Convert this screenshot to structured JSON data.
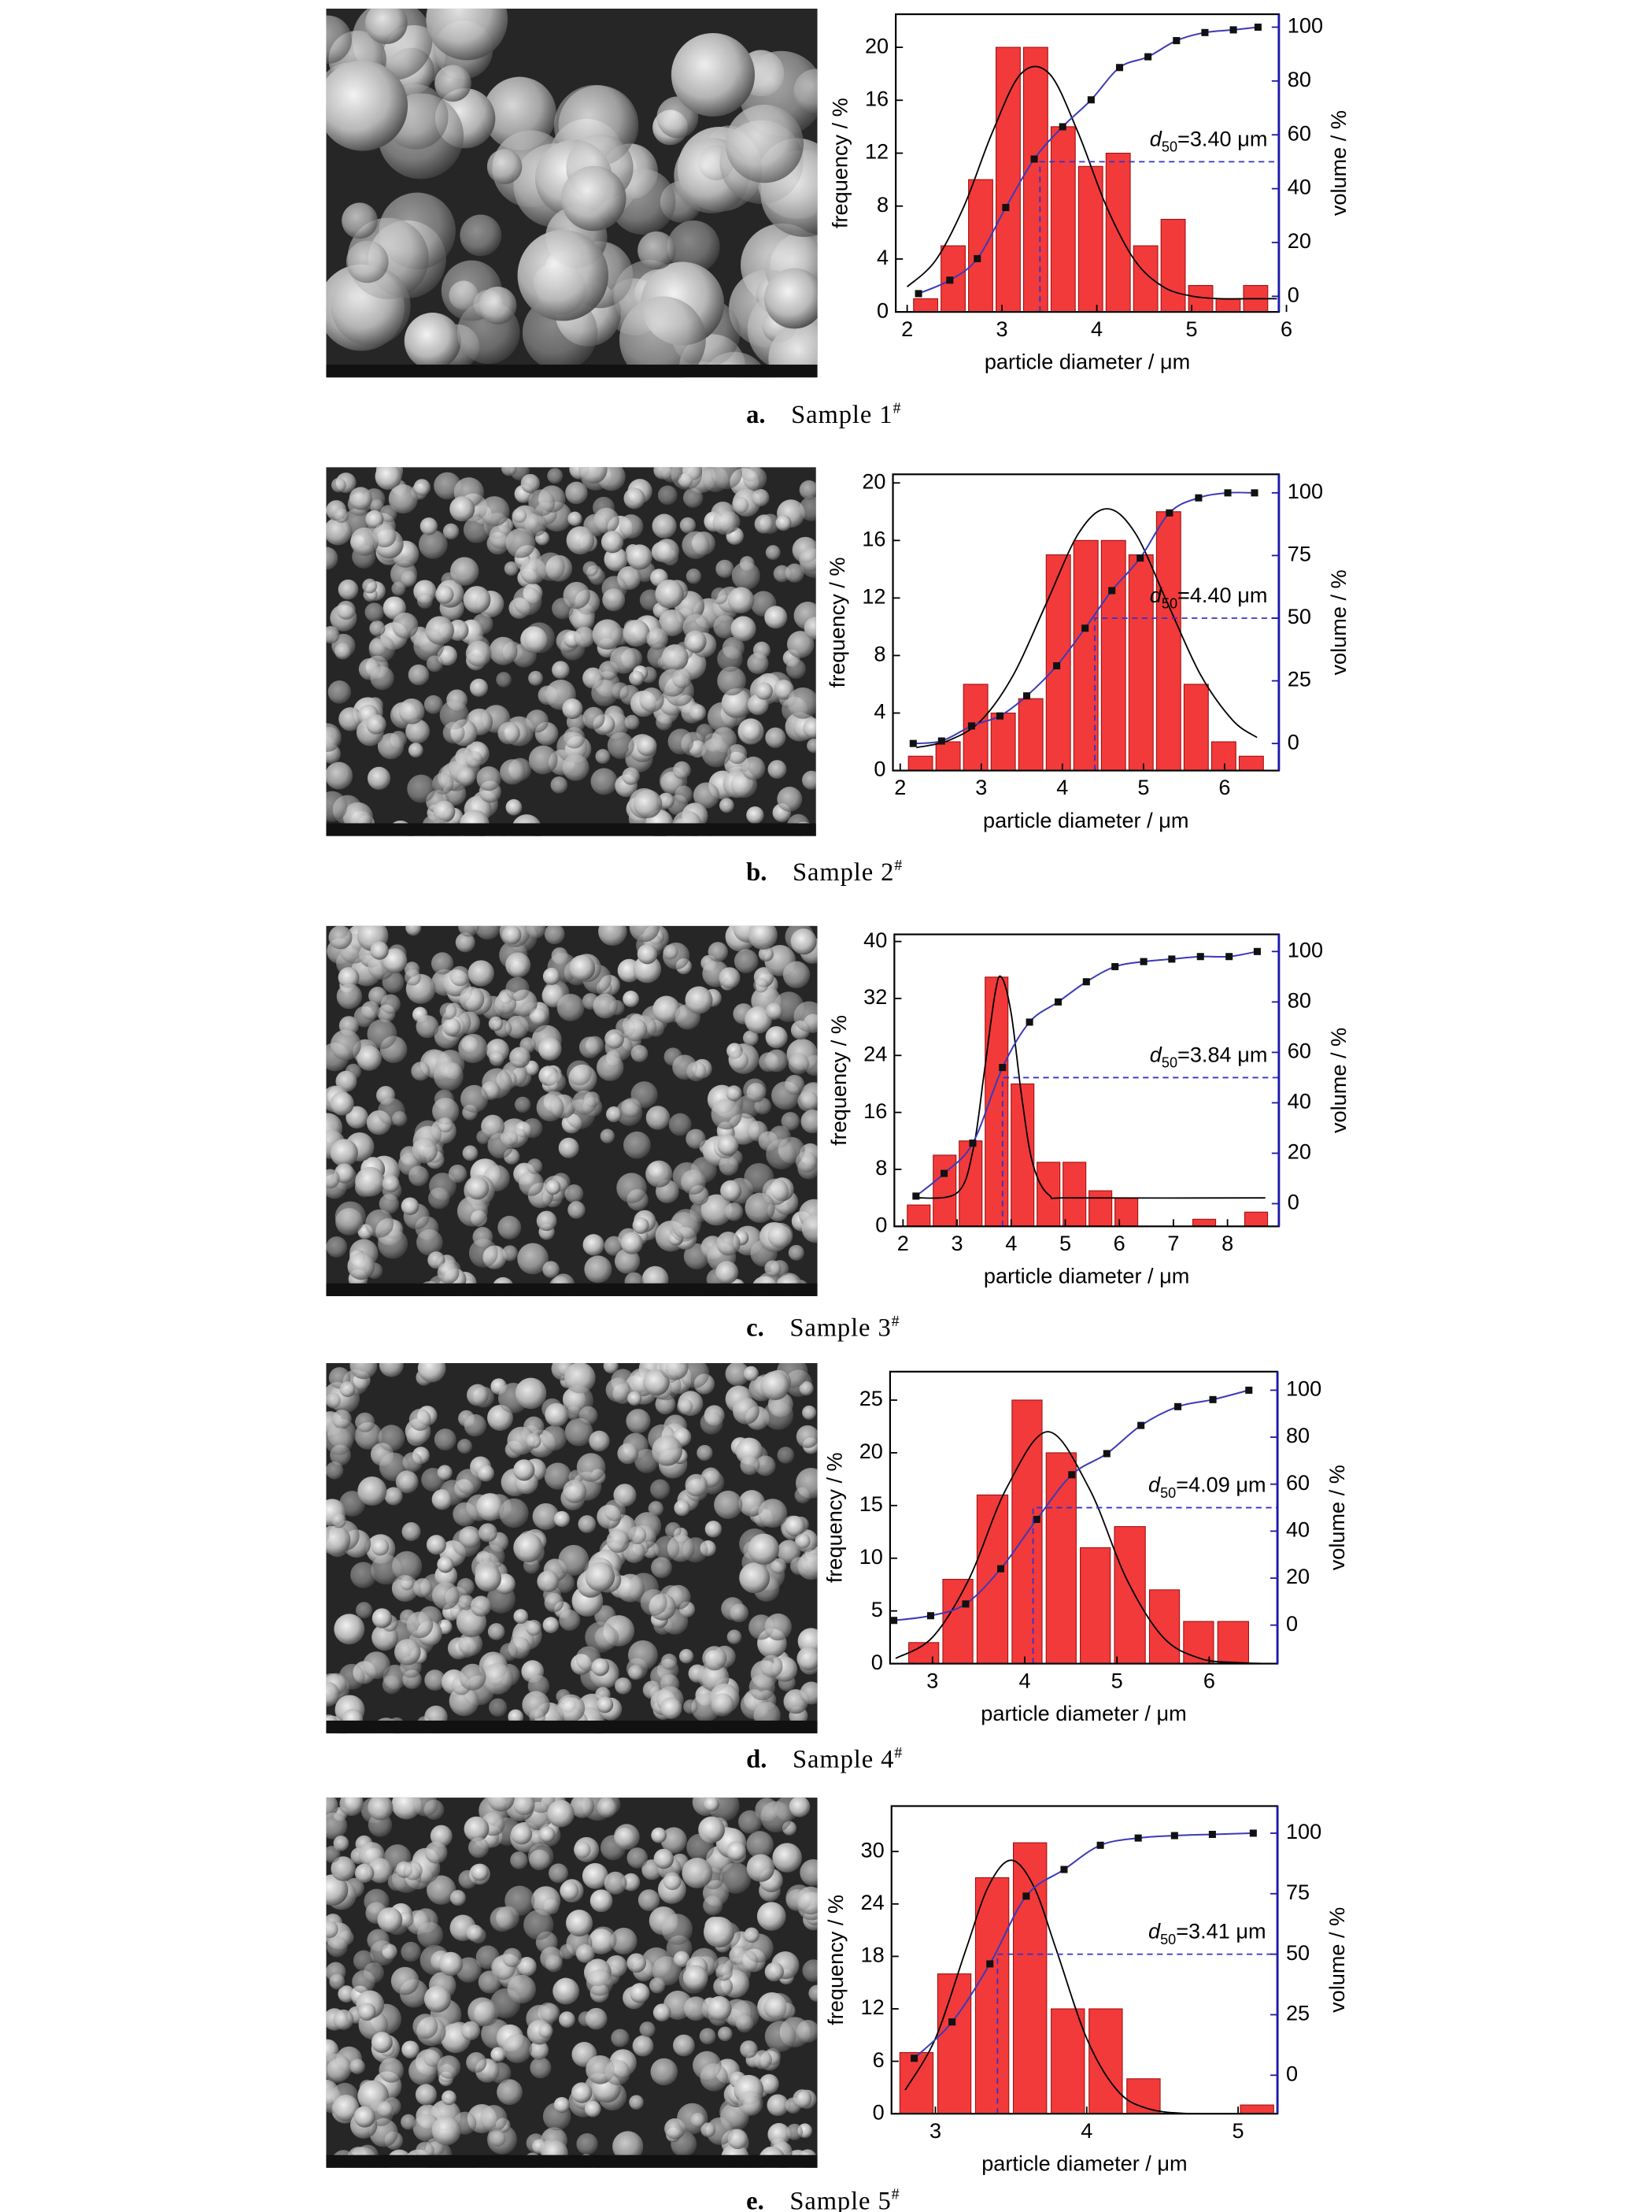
{
  "chart_data": [
    {
      "type": "histogram",
      "color": "#f23a3a",
      "bins": [
        2.05,
        2.34,
        2.63,
        2.92,
        3.21,
        3.5,
        3.79,
        4.08,
        4.37,
        4.66,
        4.95,
        5.24,
        5.53,
        5.82
      ],
      "values": [
        1,
        5,
        10,
        20,
        20,
        14,
        11,
        12,
        5,
        7,
        2,
        1,
        2
      ],
      "xlim": [
        1.88,
        5.92
      ],
      "xticks": [
        2,
        3,
        4,
        5,
        6
      ],
      "ylim": [
        0,
        22.5
      ],
      "yticks": [
        0,
        4,
        8,
        12,
        16,
        20
      ],
      "y2lim": [
        -5.8,
        104.8
      ],
      "y2ticks": [
        0,
        20,
        40,
        60,
        80,
        100
      ],
      "xlabel": "particle diameter / μm",
      "ylabel": "frequency / %",
      "y2label": "volume / %",
      "fit": {
        "color": "#000000",
        "x": [
          2.0,
          2.3,
          2.6,
          2.9,
          3.2,
          3.5,
          3.8,
          4.1,
          4.4,
          4.7,
          5.0,
          5.3,
          5.6,
          5.9
        ],
        "values": [
          1.9,
          3.9,
          8,
          13.6,
          18,
          18,
          13.6,
          8,
          3.9,
          1.9,
          1.2,
          1,
          1,
          1
        ]
      },
      "cumulative": {
        "axis": "y2",
        "color": "#3a3ab8",
        "x": [
          2.12,
          2.45,
          2.74,
          3.04,
          3.34,
          3.64,
          3.94,
          4.24,
          4.54,
          4.84,
          5.14,
          5.44,
          5.7
        ],
        "values": [
          1,
          6,
          14,
          33,
          51,
          63,
          73,
          85,
          89,
          95,
          98,
          99,
          100
        ]
      },
      "d50": {
        "value": 3.4,
        "volume": 50,
        "color": "#3333cc",
        "symbol": "d",
        "sub": "50",
        "text": "=3.40 μm"
      },
      "caption": {
        "letter": "a.",
        "text": "Sample 1",
        "sup": "#"
      }
    },
    {
      "type": "histogram",
      "color": "#f23a3a",
      "bins": [
        2.08,
        2.42,
        2.76,
        3.1,
        3.44,
        3.78,
        4.12,
        4.46,
        4.8,
        5.14,
        5.48,
        5.82,
        6.16,
        6.5
      ],
      "values": [
        1,
        2,
        6,
        4,
        5,
        15,
        16,
        16,
        15,
        18,
        6,
        2,
        1
      ],
      "xlim": [
        1.91,
        6.67
      ],
      "xticks": [
        2,
        3,
        4,
        5,
        6
      ],
      "ylim": [
        0,
        20.6
      ],
      "yticks": [
        0,
        4,
        8,
        12,
        16,
        20
      ],
      "y2lim": [
        -10.8,
        107.4
      ],
      "y2ticks": [
        0,
        25,
        50,
        75,
        100
      ],
      "xlabel": "particle diameter / μm",
      "ylabel": "frequency / %",
      "y2label": "volume / %",
      "fit": {
        "color": "#000000",
        "x": [
          2.2,
          2.6,
          3.0,
          3.4,
          3.8,
          4.2,
          4.55,
          4.9,
          5.3,
          5.7,
          6.1,
          6.4
        ],
        "values": [
          1.6,
          2.1,
          3.5,
          6.7,
          11.6,
          16.5,
          18.2,
          16.5,
          11.6,
          6.7,
          3.5,
          2.3
        ]
      },
      "cumulative": {
        "axis": "y2",
        "color": "#3a3ab8",
        "x": [
          2.16,
          2.51,
          2.88,
          3.23,
          3.56,
          3.93,
          4.28,
          4.61,
          4.96,
          5.32,
          5.68,
          6.04,
          6.37
        ],
        "values": [
          0,
          1,
          7,
          11,
          19,
          31,
          46,
          61,
          74,
          92,
          98,
          100,
          100
        ]
      },
      "d50": {
        "value": 4.4,
        "volume": 50,
        "color": "#3333cc",
        "symbol": "d",
        "sub": "50",
        "text": "=4.40 μm"
      },
      "caption": {
        "letter": "b.",
        "text": "Sample 2",
        "sup": "#"
      }
    },
    {
      "type": "histogram",
      "color": "#f23a3a",
      "bins": [
        2.05,
        2.53,
        3.01,
        3.49,
        3.97,
        4.45,
        4.93,
        5.41,
        5.89,
        6.37,
        6.85,
        7.33,
        7.81,
        8.29,
        8.77
      ],
      "values": [
        3,
        10,
        12,
        35,
        20,
        9,
        9,
        5,
        4,
        0,
        0,
        1,
        0,
        2
      ],
      "xlim": [
        1.84,
        8.95
      ],
      "xticks": [
        2,
        3,
        4,
        5,
        6,
        7,
        8
      ],
      "ylim": [
        0,
        41
      ],
      "yticks": [
        0,
        8,
        16,
        24,
        32,
        40
      ],
      "y2lim": [
        -9,
        106.8
      ],
      "y2ticks": [
        0,
        20,
        40,
        60,
        80,
        100
      ],
      "xlabel": "particle diameter / μm",
      "ylabel": "frequency / %",
      "y2label": "volume / %",
      "fit": {
        "color": "#000000",
        "x": [
          2.2,
          3.0,
          3.3,
          3.5,
          3.7,
          3.82,
          4.0,
          4.2,
          4.4,
          4.7,
          5.2,
          8.7
        ],
        "values": [
          4,
          4.7,
          10.9,
          21.5,
          32.6,
          35,
          29.9,
          17.9,
          8.8,
          4.4,
          4,
          4
        ]
      },
      "cumulative": {
        "axis": "y2",
        "color": "#3a3ab8",
        "x": [
          2.24,
          2.76,
          3.29,
          3.84,
          4.34,
          4.87,
          5.39,
          5.92,
          6.45,
          6.97,
          7.5,
          8.03,
          8.55
        ],
        "values": [
          3,
          12,
          24,
          54,
          72,
          80,
          88,
          94,
          96,
          97,
          98,
          98,
          100
        ]
      },
      "d50": {
        "value": 3.84,
        "volume": 50,
        "color": "#3333cc",
        "symbol": "d",
        "sub": "50",
        "text": "=3.84 μm"
      },
      "caption": {
        "letter": "c.",
        "text": "Sample 3",
        "sup": "#"
      }
    },
    {
      "type": "histogram",
      "color": "#f23a3a",
      "bins": [
        2.72,
        3.09,
        3.46,
        3.84,
        4.21,
        4.58,
        4.95,
        5.33,
        5.7,
        6.07,
        6.45
      ],
      "values": [
        2,
        8,
        16,
        25,
        20,
        11,
        13,
        7,
        4,
        4
      ],
      "xlim": [
        2.54,
        6.74
      ],
      "xticks": [
        3,
        4,
        5,
        6
      ],
      "ylim": [
        0,
        27.7
      ],
      "yticks": [
        0,
        5,
        10,
        15,
        20,
        25
      ],
      "y2lim": [
        -16.4,
        107.9
      ],
      "y2ticks": [
        0,
        20,
        40,
        60,
        80,
        100
      ],
      "xlabel": "particle diameter / μm",
      "ylabel": "frequency / %",
      "y2label": "volume / %",
      "fit": {
        "color": "#000000",
        "x": [
          2.6,
          3.0,
          3.4,
          3.8,
          4.25,
          4.7,
          5.1,
          5.5,
          5.9,
          6.3,
          6.7
        ],
        "values": [
          0.5,
          2.5,
          8.1,
          16.6,
          22,
          16.6,
          8.1,
          2.5,
          0.5,
          0.1,
          0
        ]
      },
      "cumulative": {
        "axis": "y2",
        "color": "#3a3ab8",
        "x": [
          2.58,
          2.98,
          3.36,
          3.74,
          4.13,
          4.51,
          4.89,
          5.26,
          5.66,
          6.04,
          6.43
        ],
        "values": [
          2,
          4,
          9,
          24,
          45,
          64,
          73,
          85,
          93,
          96,
          100
        ]
      },
      "d50": {
        "value": 4.09,
        "volume": 50,
        "color": "#3333cc",
        "symbol": "d",
        "sub": "50",
        "text": "=4.09 μm"
      },
      "caption": {
        "letter": "d.",
        "text": "Sample 4",
        "sup": "#"
      }
    },
    {
      "type": "histogram",
      "color": "#f23a3a",
      "bins": [
        2.75,
        3,
        3.25,
        3.5,
        3.75,
        4,
        4.25,
        4.5,
        4.75,
        5,
        5.25
      ],
      "values": [
        7,
        16,
        27,
        31,
        12,
        12,
        4,
        0,
        0,
        1
      ],
      "xlim": [
        2.71,
        5.26
      ],
      "xticks": [
        3,
        4,
        5
      ],
      "ylim": [
        0,
        35.2
      ],
      "yticks": [
        0,
        6,
        12,
        18,
        24,
        30
      ],
      "y2lim": [
        -15.9,
        111.2
      ],
      "y2ticks": [
        0,
        25,
        50,
        75,
        100
      ],
      "xlabel": "particle diameter / μm",
      "ylabel": "frequency / %",
      "y2label": "volume / %",
      "fit": {
        "color": "#000000",
        "x": [
          2.8,
          3.0,
          3.2,
          3.35,
          3.5,
          3.65,
          3.8,
          4.0,
          4.2,
          4.4,
          4.7,
          5.2
        ],
        "values": [
          2.7,
          8.6,
          18.7,
          26,
          29,
          26,
          18.7,
          8.6,
          2.7,
          0.6,
          0,
          0
        ]
      },
      "cumulative": {
        "axis": "y2",
        "color": "#3a3ab8",
        "x": [
          2.86,
          3.11,
          3.36,
          3.6,
          3.85,
          4.09,
          4.34,
          4.58,
          4.83,
          5.1
        ],
        "values": [
          7,
          22,
          46,
          74,
          85,
          95,
          98,
          99,
          99.5,
          100
        ]
      },
      "d50": {
        "value": 3.41,
        "volume": 50,
        "color": "#3333cc",
        "symbol": "d",
        "sub": "50",
        "text": "=3.41 μm"
      },
      "caption": {
        "letter": "e.",
        "text": "Sample 5",
        "sup": "#"
      }
    }
  ]
}
